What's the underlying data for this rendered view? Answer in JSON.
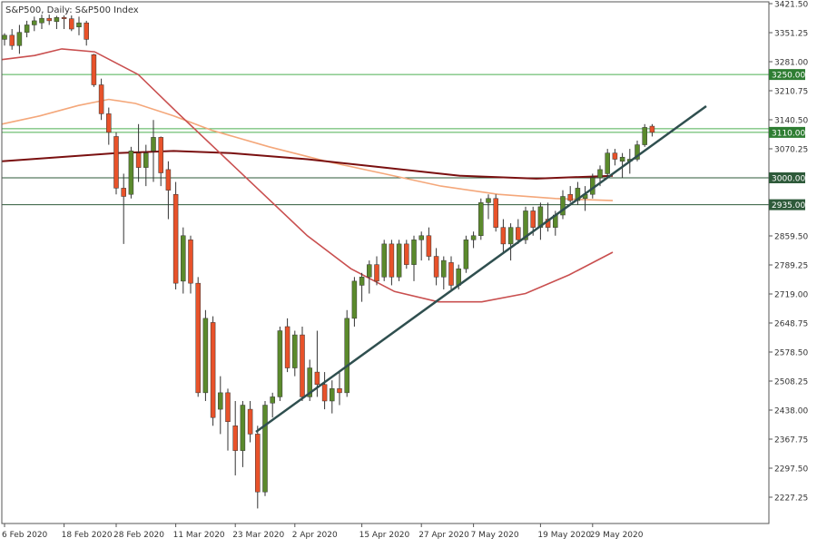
{
  "chart_data": {
    "type": "candlestick",
    "title": "S&P500, Daily:  S&P500 Index",
    "y_ticks": [
      "3421.50",
      "3351.25",
      "3281.00",
      "3210.75",
      "3140.50",
      "3070.25",
      "2859.50",
      "2789.25",
      "2719.00",
      "2648.75",
      "2578.50",
      "2508.25",
      "2438.00",
      "2367.75",
      "2297.50",
      "2227.25"
    ],
    "ylim": [
      2190,
      3421.5
    ],
    "x_ticks": [
      "6 Feb 2020",
      "18 Feb 2020",
      "28 Feb 2020",
      "11 Mar 2020",
      "23 Mar 2020",
      "2 Apr 2020",
      "15 Apr 2020",
      "27 Apr 2020",
      "7 May 2020",
      "19 May 2020",
      "29 May 2020"
    ],
    "x_tick_bar_index": [
      0,
      8,
      15,
      23,
      31,
      39,
      48,
      56,
      63,
      72,
      79
    ],
    "levels": [
      {
        "value": 3250,
        "label": "3250.00",
        "color": "#2e7d32",
        "line": "#4caf50"
      },
      {
        "value": 3110,
        "label": "3110.00",
        "color": "#2e7d32",
        "line": "#4caf50"
      },
      {
        "value": 3000,
        "label": "3000.00",
        "color": "#2e5a3a",
        "line": "#2e5a3a"
      },
      {
        "value": 2935,
        "label": "2935.00",
        "color": "#2e5a3a",
        "line": "#2e5a3a"
      }
    ],
    "colors": {
      "bull": "#5b8a2c",
      "bear": "#e8522a",
      "wick": "#333333",
      "ma_fast": "#c94f4f",
      "ma_mid": "#f4a77a",
      "ma_slow": "#7a1010",
      "trendline": "#2f4f4f",
      "grid": "#e8e8e8",
      "border": "#555555",
      "text": "#333333"
    },
    "candles": [
      {
        "o": 3335,
        "h": 3350,
        "l": 3320,
        "c": 3345
      },
      {
        "o": 3345,
        "h": 3360,
        "l": 3310,
        "c": 3320
      },
      {
        "o": 3320,
        "h": 3370,
        "l": 3300,
        "c": 3352
      },
      {
        "o": 3352,
        "h": 3380,
        "l": 3340,
        "c": 3370
      },
      {
        "o": 3370,
        "h": 3390,
        "l": 3355,
        "c": 3380
      },
      {
        "o": 3375,
        "h": 3395,
        "l": 3360,
        "c": 3386
      },
      {
        "o": 3386,
        "h": 3395,
        "l": 3370,
        "c": 3380
      },
      {
        "o": 3378,
        "h": 3392,
        "l": 3360,
        "c": 3388
      },
      {
        "o": 3388,
        "h": 3393,
        "l": 3360,
        "c": 3385
      },
      {
        "o": 3385,
        "h": 3393,
        "l": 3355,
        "c": 3360
      },
      {
        "o": 3365,
        "h": 3390,
        "l": 3345,
        "c": 3375
      },
      {
        "o": 3375,
        "h": 3380,
        "l": 3320,
        "c": 3335
      },
      {
        "o": 3298,
        "h": 3300,
        "l": 3220,
        "c": 3225
      },
      {
        "o": 3225,
        "h": 3240,
        "l": 3140,
        "c": 3155
      },
      {
        "o": 3155,
        "h": 3170,
        "l": 3080,
        "c": 3110
      },
      {
        "o": 3100,
        "h": 3110,
        "l": 2960,
        "c": 2975
      },
      {
        "o": 2975,
        "h": 3010,
        "l": 2840,
        "c": 2955
      },
      {
        "o": 2960,
        "h": 3075,
        "l": 2950,
        "c": 3065
      },
      {
        "o": 3060,
        "h": 3130,
        "l": 2990,
        "c": 3025
      },
      {
        "o": 3025,
        "h": 3080,
        "l": 2980,
        "c": 3060
      },
      {
        "o": 3065,
        "h": 3140,
        "l": 2990,
        "c": 3098
      },
      {
        "o": 3098,
        "h": 3100,
        "l": 2980,
        "c": 3012
      },
      {
        "o": 3020,
        "h": 3040,
        "l": 2900,
        "c": 2970
      },
      {
        "o": 2960,
        "h": 2990,
        "l": 2730,
        "c": 2745
      },
      {
        "o": 2750,
        "h": 2880,
        "l": 2720,
        "c": 2860
      },
      {
        "o": 2850,
        "h": 2860,
        "l": 2720,
        "c": 2745
      },
      {
        "o": 2745,
        "h": 2760,
        "l": 2470,
        "c": 2480
      },
      {
        "o": 2480,
        "h": 2680,
        "l": 2460,
        "c": 2660
      },
      {
        "o": 2650,
        "h": 2665,
        "l": 2400,
        "c": 2420
      },
      {
        "o": 2440,
        "h": 2520,
        "l": 2380,
        "c": 2480
      },
      {
        "o": 2480,
        "h": 2490,
        "l": 2340,
        "c": 2410
      },
      {
        "o": 2400,
        "h": 2460,
        "l": 2280,
        "c": 2340
      },
      {
        "o": 2340,
        "h": 2460,
        "l": 2300,
        "c": 2450
      },
      {
        "o": 2440,
        "h": 2460,
        "l": 2360,
        "c": 2380
      },
      {
        "o": 2380,
        "h": 2400,
        "l": 2200,
        "c": 2240
      },
      {
        "o": 2240,
        "h": 2460,
        "l": 2230,
        "c": 2450
      },
      {
        "o": 2455,
        "h": 2480,
        "l": 2420,
        "c": 2470
      },
      {
        "o": 2470,
        "h": 2640,
        "l": 2460,
        "c": 2630
      },
      {
        "o": 2640,
        "h": 2660,
        "l": 2530,
        "c": 2540
      },
      {
        "o": 2540,
        "h": 2630,
        "l": 2520,
        "c": 2620
      },
      {
        "o": 2620,
        "h": 2640,
        "l": 2460,
        "c": 2470
      },
      {
        "o": 2470,
        "h": 2560,
        "l": 2460,
        "c": 2540
      },
      {
        "o": 2530,
        "h": 2630,
        "l": 2470,
        "c": 2500
      },
      {
        "o": 2500,
        "h": 2530,
        "l": 2440,
        "c": 2460
      },
      {
        "o": 2460,
        "h": 2510,
        "l": 2430,
        "c": 2490
      },
      {
        "o": 2490,
        "h": 2530,
        "l": 2450,
        "c": 2480
      },
      {
        "o": 2480,
        "h": 2680,
        "l": 2470,
        "c": 2660
      },
      {
        "o": 2660,
        "h": 2760,
        "l": 2640,
        "c": 2750
      },
      {
        "o": 2740,
        "h": 2770,
        "l": 2700,
        "c": 2760
      },
      {
        "o": 2760,
        "h": 2800,
        "l": 2720,
        "c": 2790
      },
      {
        "o": 2790,
        "h": 2810,
        "l": 2740,
        "c": 2750
      },
      {
        "o": 2760,
        "h": 2850,
        "l": 2750,
        "c": 2840
      },
      {
        "o": 2840,
        "h": 2850,
        "l": 2740,
        "c": 2760
      },
      {
        "o": 2760,
        "h": 2850,
        "l": 2750,
        "c": 2840
      },
      {
        "o": 2840,
        "h": 2850,
        "l": 2780,
        "c": 2790
      },
      {
        "o": 2790,
        "h": 2860,
        "l": 2750,
        "c": 2850
      },
      {
        "o": 2850,
        "h": 2870,
        "l": 2800,
        "c": 2860
      },
      {
        "o": 2860,
        "h": 2880,
        "l": 2800,
        "c": 2810
      },
      {
        "o": 2810,
        "h": 2830,
        "l": 2740,
        "c": 2760
      },
      {
        "o": 2760,
        "h": 2810,
        "l": 2730,
        "c": 2800
      },
      {
        "o": 2795,
        "h": 2810,
        "l": 2730,
        "c": 2740
      },
      {
        "o": 2740,
        "h": 2790,
        "l": 2730,
        "c": 2780
      },
      {
        "o": 2780,
        "h": 2860,
        "l": 2770,
        "c": 2850
      },
      {
        "o": 2850,
        "h": 2870,
        "l": 2830,
        "c": 2860
      },
      {
        "o": 2860,
        "h": 2950,
        "l": 2850,
        "c": 2940
      },
      {
        "o": 2940,
        "h": 2960,
        "l": 2900,
        "c": 2950
      },
      {
        "o": 2950,
        "h": 2960,
        "l": 2870,
        "c": 2880
      },
      {
        "o": 2880,
        "h": 2900,
        "l": 2820,
        "c": 2840
      },
      {
        "o": 2840,
        "h": 2890,
        "l": 2800,
        "c": 2880
      },
      {
        "o": 2880,
        "h": 2900,
        "l": 2840,
        "c": 2850
      },
      {
        "o": 2850,
        "h": 2930,
        "l": 2840,
        "c": 2920
      },
      {
        "o": 2920,
        "h": 2930,
        "l": 2860,
        "c": 2880
      },
      {
        "o": 2880,
        "h": 2940,
        "l": 2850,
        "c": 2930
      },
      {
        "o": 2900,
        "h": 2940,
        "l": 2870,
        "c": 2880
      },
      {
        "o": 2880,
        "h": 2920,
        "l": 2860,
        "c": 2910
      },
      {
        "o": 2910,
        "h": 2970,
        "l": 2900,
        "c": 2955
      },
      {
        "o": 2960,
        "h": 2980,
        "l": 2940,
        "c": 2945
      },
      {
        "o": 2945,
        "h": 2990,
        "l": 2935,
        "c": 2975
      },
      {
        "o": 2950,
        "h": 2980,
        "l": 2920,
        "c": 2960
      },
      {
        "o": 2960,
        "h": 3010,
        "l": 2950,
        "c": 3000
      },
      {
        "o": 3000,
        "h": 3030,
        "l": 2980,
        "c": 3020
      },
      {
        "o": 3010,
        "h": 3070,
        "l": 3000,
        "c": 3060
      },
      {
        "o": 3060,
        "h": 3070,
        "l": 3030,
        "c": 3045
      },
      {
        "o": 3040,
        "h": 3060,
        "l": 3000,
        "c": 3050
      },
      {
        "o": 3040,
        "h": 3070,
        "l": 3010,
        "c": 3045
      },
      {
        "o": 3045,
        "h": 3090,
        "l": 3040,
        "c": 3080
      },
      {
        "o": 3080,
        "h": 3130,
        "l": 3075,
        "c": 3122
      },
      {
        "o": 3125,
        "h": 3130,
        "l": 3100,
        "c": 3110
      }
    ],
    "ma_fast": [
      [
        0,
        3286
      ],
      [
        6,
        3296
      ],
      [
        11,
        3312
      ],
      [
        17,
        3305
      ],
      [
        25,
        3250
      ],
      [
        32,
        3160
      ],
      [
        40,
        3060
      ],
      [
        48,
        2960
      ],
      [
        56,
        2860
      ],
      [
        64,
        2780
      ],
      [
        72,
        2725
      ],
      [
        80,
        2700
      ],
      [
        88,
        2700
      ],
      [
        96,
        2720
      ],
      [
        104,
        2765
      ],
      [
        112,
        2820
      ]
    ],
    "ma_mid": [
      [
        0,
        3130
      ],
      [
        10,
        3150
      ],
      [
        20,
        3175
      ],
      [
        28,
        3190
      ],
      [
        35,
        3180
      ],
      [
        45,
        3150
      ],
      [
        55,
        3115
      ],
      [
        70,
        3075
      ],
      [
        85,
        3040
      ],
      [
        100,
        3010
      ],
      [
        115,
        2980
      ],
      [
        130,
        2960
      ],
      [
        145,
        2950
      ],
      [
        160,
        2945
      ]
    ],
    "ma_slow": [
      [
        0,
        3040
      ],
      [
        15,
        3050
      ],
      [
        30,
        3060
      ],
      [
        45,
        3065
      ],
      [
        60,
        3060
      ],
      [
        80,
        3045
      ],
      [
        100,
        3025
      ],
      [
        120,
        3005
      ],
      [
        140,
        2998
      ],
      [
        160,
        3005
      ]
    ],
    "trendline": {
      "from": [
        32,
        2390
      ],
      "to": [
        89,
        3160
      ]
    }
  }
}
